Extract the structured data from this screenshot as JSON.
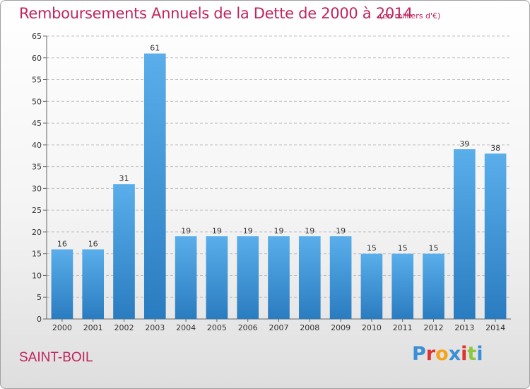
{
  "header": {
    "title": "Remboursements Annuels de la Dette de 2000 à 2014",
    "subtitle": "(en milliers d'€)"
  },
  "footer": {
    "city": "SAINT-BOIL",
    "logo_letters": [
      "P",
      "r",
      "o",
      "x",
      "i",
      "t",
      "i"
    ],
    "logo_colors": [
      "#3a8fd6",
      "#e0322e",
      "#f5a31a",
      "#3a8fd6",
      "#e0322e",
      "#8dc63f",
      "#3a8fd6"
    ]
  },
  "colors": {
    "title": "#c0245c",
    "bar_top": "#5aaeea",
    "bar_bottom": "#2a7cc0",
    "grid": "#bfbfbf"
  },
  "chart_data": {
    "type": "bar",
    "title": "Remboursements Annuels de la Dette de 2000 à 2014",
    "subtitle": "(en milliers d'€)",
    "categories": [
      "2000",
      "2001",
      "2002",
      "2003",
      "2004",
      "2005",
      "2006",
      "2007",
      "2008",
      "2009",
      "2010",
      "2011",
      "2012",
      "2013",
      "2014"
    ],
    "values": [
      16,
      16,
      31,
      61,
      19,
      19,
      19,
      19,
      19,
      19,
      15,
      15,
      15,
      39,
      38
    ],
    "ylim": [
      0,
      65
    ],
    "yticks": [
      0,
      5,
      10,
      15,
      20,
      25,
      30,
      35,
      40,
      45,
      50,
      55,
      60,
      65
    ],
    "grid": true,
    "data_labels": true
  }
}
